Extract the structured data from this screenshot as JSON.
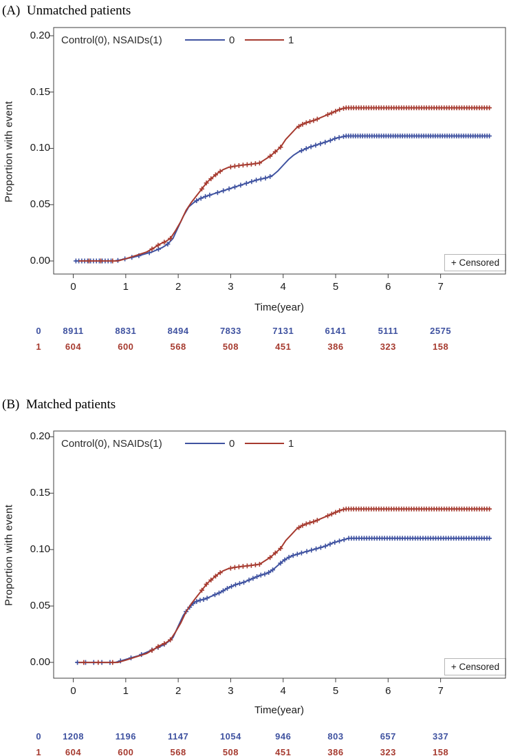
{
  "colors": {
    "control": "#3F52A0",
    "nsaid": "#A63A2F",
    "axis": "#3f3f3f",
    "text": "#1a1a1a"
  },
  "chart_data": [
    {
      "type": "line",
      "title": "(A)  Unmatched patients",
      "xlabel": "Time(year)",
      "ylabel": "Proportion with event",
      "legend_title": "Control(0), NSAIDs(1)",
      "censored_label": "+ Censored",
      "xticks": [
        "0",
        "1",
        "2",
        "3",
        "4",
        "5",
        "6",
        "7"
      ],
      "yticks": [
        "0.00",
        "0.05",
        "0.10",
        "0.15",
        "0.20"
      ],
      "xlim": [
        -0.374,
        8.237
      ],
      "ylim": [
        -0.0116,
        0.2073
      ],
      "grid": false,
      "legend_position": "top-inside",
      "series": [
        {
          "name": "0",
          "group": "Control",
          "color_key": "control",
          "steps": [
            [
              0.03,
              0
            ],
            [
              0.8,
              0
            ],
            [
              0.9,
              0.001
            ],
            [
              1.0,
              0.002
            ],
            [
              1.1,
              0.003
            ],
            [
              1.2,
              0.004
            ],
            [
              1.35,
              0.006
            ],
            [
              1.5,
              0.008
            ],
            [
              1.6,
              0.01
            ],
            [
              1.7,
              0.012
            ],
            [
              1.8,
              0.015
            ],
            [
              1.9,
              0.02
            ],
            [
              1.95,
              0.025
            ],
            [
              2.0,
              0.03
            ],
            [
              2.05,
              0.035
            ],
            [
              2.1,
              0.04
            ],
            [
              2.15,
              0.044
            ],
            [
              2.2,
              0.048
            ],
            [
              2.3,
              0.052
            ],
            [
              2.4,
              0.055
            ],
            [
              2.5,
              0.057
            ],
            [
              2.7,
              0.06
            ],
            [
              2.9,
              0.063
            ],
            [
              3.1,
              0.066
            ],
            [
              3.3,
              0.069
            ],
            [
              3.5,
              0.072
            ],
            [
              3.7,
              0.074
            ],
            [
              3.8,
              0.076
            ],
            [
              3.9,
              0.08
            ],
            [
              4.0,
              0.085
            ],
            [
              4.1,
              0.09
            ],
            [
              4.2,
              0.094
            ],
            [
              4.3,
              0.097
            ],
            [
              4.5,
              0.101
            ],
            [
              4.7,
              0.104
            ],
            [
              4.9,
              0.107
            ],
            [
              5.0,
              0.109
            ],
            [
              5.1,
              0.11
            ],
            [
              5.2,
              0.111
            ],
            [
              7.95,
              0.111
            ]
          ],
          "censor_runs": [
            [
              0.05,
              0.72,
              13
            ],
            [
              0.85,
              1.25,
              4
            ],
            [
              1.45,
              1.8,
              3
            ],
            [
              2.35,
              2.6,
              4
            ],
            [
              2.75,
              3.3,
              6
            ],
            [
              3.4,
              3.75,
              5
            ],
            [
              4.35,
              4.8,
              6
            ],
            [
              4.9,
              5.15,
              4
            ],
            [
              5.2,
              7.93,
              62
            ]
          ]
        },
        {
          "name": "1",
          "group": "NSAIDs",
          "color_key": "nsaid",
          "steps": [
            [
              0.1,
              0
            ],
            [
              0.85,
              0
            ],
            [
              1.0,
              0.002
            ],
            [
              1.2,
              0.005
            ],
            [
              1.4,
              0.008
            ],
            [
              1.55,
              0.012
            ],
            [
              1.65,
              0.015
            ],
            [
              1.75,
              0.017
            ],
            [
              1.85,
              0.02
            ],
            [
              1.95,
              0.027
            ],
            [
              2.05,
              0.035
            ],
            [
              2.15,
              0.045
            ],
            [
              2.25,
              0.052
            ],
            [
              2.35,
              0.058
            ],
            [
              2.45,
              0.064
            ],
            [
              2.55,
              0.07
            ],
            [
              2.65,
              0.074
            ],
            [
              2.75,
              0.078
            ],
            [
              2.85,
              0.081
            ],
            [
              2.95,
              0.083
            ],
            [
              3.05,
              0.084
            ],
            [
              3.2,
              0.085
            ],
            [
              3.4,
              0.086
            ],
            [
              3.55,
              0.087
            ],
            [
              3.65,
              0.09
            ],
            [
              3.75,
              0.093
            ],
            [
              3.85,
              0.097
            ],
            [
              3.95,
              0.101
            ],
            [
              4.05,
              0.108
            ],
            [
              4.15,
              0.113
            ],
            [
              4.25,
              0.118
            ],
            [
              4.35,
              0.121
            ],
            [
              4.45,
              0.123
            ],
            [
              4.6,
              0.125
            ],
            [
              4.75,
              0.128
            ],
            [
              4.9,
              0.131
            ],
            [
              5.0,
              0.133
            ],
            [
              5.1,
              0.135
            ],
            [
              5.2,
              0.136
            ],
            [
              7.95,
              0.136
            ]
          ],
          "censor_runs": [
            [
              0.3,
              0.75,
              3
            ],
            [
              1.5,
              1.85,
              4
            ],
            [
              2.45,
              2.8,
              5
            ],
            [
              3.0,
              3.55,
              8
            ],
            [
              3.75,
              3.95,
              3
            ],
            [
              4.3,
              4.65,
              6
            ],
            [
              4.85,
              5.15,
              5
            ],
            [
              5.2,
              7.93,
              58
            ]
          ]
        }
      ],
      "at_risk": {
        "times": [
          0,
          1,
          2,
          3,
          4,
          5,
          6,
          7
        ],
        "rows": [
          {
            "label": "0",
            "color_key": "control",
            "values": [
              "8911",
              "8831",
              "8494",
              "7833",
              "7131",
              "6141",
              "5111",
              "2575"
            ]
          },
          {
            "label": "1",
            "color_key": "nsaid",
            "values": [
              "604",
              "600",
              "568",
              "508",
              "451",
              "386",
              "323",
              "158"
            ]
          }
        ]
      }
    },
    {
      "type": "line",
      "title": "(B)  Matched patients",
      "xlabel": "Time(year)",
      "ylabel": "Proportion with event",
      "legend_title": "Control(0), NSAIDs(1)",
      "censored_label": "+ Censored",
      "xticks": [
        "0",
        "1",
        "2",
        "3",
        "4",
        "5",
        "6",
        "7"
      ],
      "yticks": [
        "0.00",
        "0.05",
        "0.10",
        "0.15",
        "0.20"
      ],
      "xlim": [
        -0.374,
        8.237
      ],
      "ylim": [
        -0.014,
        0.2051
      ],
      "grid": false,
      "legend_position": "top-inside",
      "series": [
        {
          "name": "0",
          "group": "Control",
          "color_key": "control",
          "steps": [
            [
              0.05,
              0
            ],
            [
              0.8,
              0
            ],
            [
              0.95,
              0.002
            ],
            [
              1.1,
              0.004
            ],
            [
              1.25,
              0.006
            ],
            [
              1.4,
              0.009
            ],
            [
              1.55,
              0.012
            ],
            [
              1.7,
              0.015
            ],
            [
              1.8,
              0.018
            ],
            [
              1.9,
              0.022
            ],
            [
              1.95,
              0.027
            ],
            [
              2.0,
              0.032
            ],
            [
              2.05,
              0.037
            ],
            [
              2.1,
              0.042
            ],
            [
              2.2,
              0.048
            ],
            [
              2.3,
              0.053
            ],
            [
              2.4,
              0.055
            ],
            [
              2.5,
              0.056
            ],
            [
              2.65,
              0.059
            ],
            [
              2.8,
              0.062
            ],
            [
              2.95,
              0.066
            ],
            [
              3.1,
              0.069
            ],
            [
              3.25,
              0.071
            ],
            [
              3.4,
              0.074
            ],
            [
              3.55,
              0.077
            ],
            [
              3.7,
              0.079
            ],
            [
              3.8,
              0.082
            ],
            [
              3.9,
              0.086
            ],
            [
              4.0,
              0.09
            ],
            [
              4.1,
              0.093
            ],
            [
              4.2,
              0.095
            ],
            [
              4.35,
              0.097
            ],
            [
              4.5,
              0.099
            ],
            [
              4.65,
              0.101
            ],
            [
              4.8,
              0.103
            ],
            [
              4.95,
              0.106
            ],
            [
              5.1,
              0.108
            ],
            [
              5.25,
              0.11
            ],
            [
              7.95,
              0.11
            ]
          ],
          "censor_runs": [
            [
              0.08,
              0.7,
              5
            ],
            [
              0.9,
              1.3,
              3
            ],
            [
              1.5,
              1.85,
              4
            ],
            [
              2.15,
              2.55,
              7
            ],
            [
              2.7,
              3.25,
              8
            ],
            [
              3.35,
              3.8,
              7
            ],
            [
              3.95,
              4.35,
              6
            ],
            [
              4.45,
              5.25,
              10
            ],
            [
              5.3,
              7.93,
              55
            ]
          ]
        },
        {
          "name": "1",
          "group": "NSAIDs",
          "color_key": "nsaid",
          "steps": [
            [
              0.1,
              0
            ],
            [
              0.85,
              0
            ],
            [
              1.0,
              0.002
            ],
            [
              1.2,
              0.005
            ],
            [
              1.4,
              0.008
            ],
            [
              1.55,
              0.012
            ],
            [
              1.65,
              0.015
            ],
            [
              1.75,
              0.017
            ],
            [
              1.85,
              0.02
            ],
            [
              1.95,
              0.027
            ],
            [
              2.05,
              0.035
            ],
            [
              2.15,
              0.045
            ],
            [
              2.25,
              0.052
            ],
            [
              2.35,
              0.058
            ],
            [
              2.45,
              0.064
            ],
            [
              2.55,
              0.07
            ],
            [
              2.65,
              0.074
            ],
            [
              2.75,
              0.078
            ],
            [
              2.85,
              0.081
            ],
            [
              2.95,
              0.083
            ],
            [
              3.05,
              0.084
            ],
            [
              3.2,
              0.085
            ],
            [
              3.4,
              0.086
            ],
            [
              3.55,
              0.087
            ],
            [
              3.65,
              0.09
            ],
            [
              3.75,
              0.093
            ],
            [
              3.85,
              0.097
            ],
            [
              3.95,
              0.101
            ],
            [
              4.05,
              0.108
            ],
            [
              4.15,
              0.113
            ],
            [
              4.25,
              0.118
            ],
            [
              4.35,
              0.121
            ],
            [
              4.45,
              0.123
            ],
            [
              4.6,
              0.125
            ],
            [
              4.75,
              0.128
            ],
            [
              4.9,
              0.131
            ],
            [
              5.0,
              0.133
            ],
            [
              5.1,
              0.135
            ],
            [
              5.2,
              0.136
            ],
            [
              7.95,
              0.136
            ]
          ],
          "censor_runs": [
            [
              0.2,
              0.75,
              3
            ],
            [
              1.5,
              1.85,
              4
            ],
            [
              2.45,
              2.8,
              5
            ],
            [
              3.0,
              3.55,
              8
            ],
            [
              3.75,
              3.95,
              3
            ],
            [
              4.3,
              4.65,
              6
            ],
            [
              4.85,
              5.15,
              5
            ],
            [
              5.2,
              7.93,
              58
            ]
          ]
        }
      ],
      "at_risk": {
        "times": [
          0,
          1,
          2,
          3,
          4,
          5,
          6,
          7
        ],
        "rows": [
          {
            "label": "0",
            "color_key": "control",
            "values": [
              "1208",
              "1196",
              "1147",
              "1054",
              "946",
              "803",
              "657",
              "337"
            ]
          },
          {
            "label": "1",
            "color_key": "nsaid",
            "values": [
              "604",
              "600",
              "568",
              "508",
              "451",
              "386",
              "323",
              "158"
            ]
          }
        ]
      }
    }
  ]
}
